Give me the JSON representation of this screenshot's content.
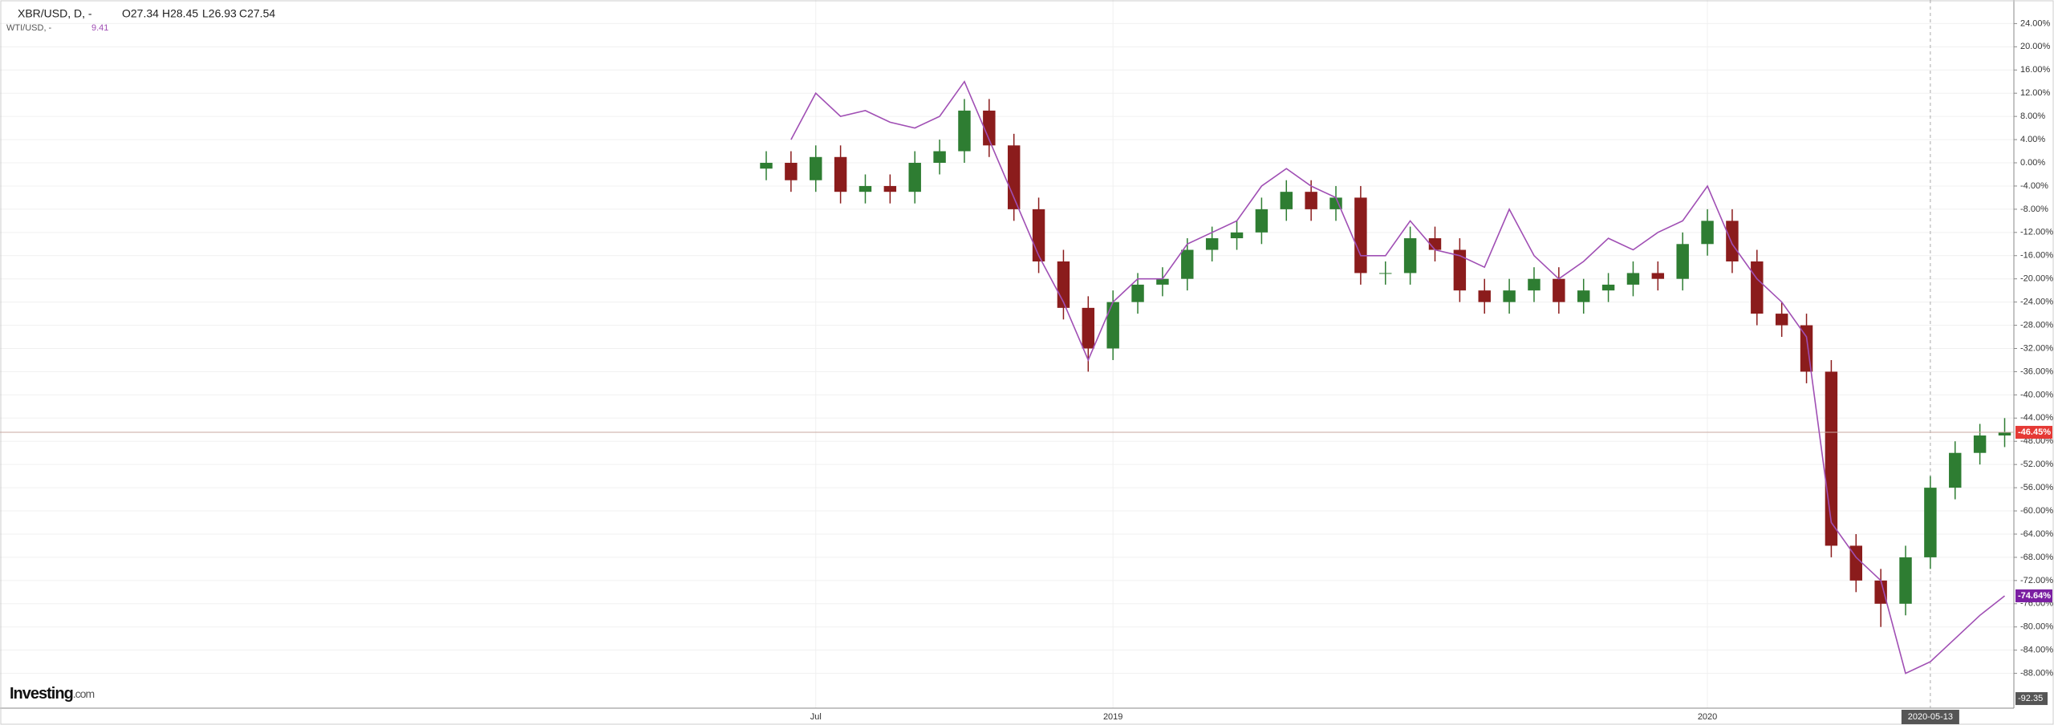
{
  "chart_data": {
    "type": "candlestick",
    "header": {
      "symbol": "XBR/USD, D, -",
      "open": "O27.34",
      "high": "H28.45",
      "low": "L26.93",
      "close": "C27.54",
      "symbol2": "WTI/USD, -",
      "value2": "9.41"
    },
    "watermark": {
      "brand": "Investing",
      "suffix": ".com"
    },
    "categories": [
      null,
      null,
      "Jul",
      null,
      null,
      null,
      null,
      null,
      null,
      null,
      null,
      null,
      null,
      null,
      "2019",
      null,
      null,
      null,
      null,
      null,
      null,
      null,
      null,
      null,
      null,
      null,
      null,
      null,
      null,
      null,
      null,
      null,
      null,
      null,
      null,
      null,
      null,
      null,
      "2020",
      null,
      null,
      null,
      null,
      null,
      null,
      null,
      null,
      null,
      null,
      null,
      null
    ],
    "crosshair": {
      "index": 47,
      "label": "2020-05-13"
    },
    "series": [
      {
        "name": "XBR/USD",
        "type": "candlestick",
        "up_color": "#2e7d32",
        "down_color": "#8b1c1c",
        "open": [
          -1,
          0,
          -3,
          1,
          -5,
          -4,
          -5,
          0,
          2,
          9,
          3,
          -8,
          -17,
          -25,
          -32,
          -24,
          -21,
          -20,
          -15,
          -13,
          -12,
          -8,
          -5,
          -8,
          -6,
          -19,
          -19,
          -13,
          -15,
          -22,
          -24,
          -22,
          -20,
          -24,
          -22,
          -21,
          -19,
          -20,
          -14,
          -10,
          -17,
          -26,
          -28,
          -36,
          -66,
          -72,
          -76,
          -68,
          -56,
          -50,
          -47
        ],
        "high": [
          2,
          2,
          3,
          3,
          -2,
          -2,
          2,
          4,
          11,
          11,
          5,
          -6,
          -15,
          -23,
          -22,
          -19,
          -18,
          -13,
          -11,
          -10,
          -6,
          -3,
          -3,
          -4,
          -4,
          -17,
          -11,
          -11,
          -13,
          -20,
          -20,
          -18,
          -18,
          -20,
          -19,
          -17,
          -17,
          -12,
          -8,
          -8,
          -15,
          -24,
          -26,
          -34,
          -64,
          -70,
          -66,
          -54,
          -48,
          -45,
          -44
        ],
        "low": [
          -3,
          -5,
          -5,
          -7,
          -7,
          -7,
          -7,
          -2,
          0,
          1,
          -10,
          -19,
          -27,
          -36,
          -34,
          -26,
          -23,
          -22,
          -17,
          -15,
          -14,
          -10,
          -10,
          -10,
          -21,
          -21,
          -21,
          -17,
          -24,
          -26,
          -26,
          -24,
          -26,
          -26,
          -24,
          -23,
          -22,
          -22,
          -16,
          -19,
          -28,
          -30,
          -38,
          -68,
          -74,
          -80,
          -78,
          -70,
          -58,
          -52,
          -49
        ],
        "close": [
          0,
          -3,
          1,
          -5,
          -4,
          -5,
          0,
          2,
          9,
          3,
          -8,
          -17,
          -25,
          -32,
          -24,
          -21,
          -20,
          -15,
          -13,
          -12,
          -8,
          -5,
          -8,
          -6,
          -19,
          -19,
          -13,
          -15,
          -22,
          -24,
          -22,
          -20,
          -24,
          -22,
          -21,
          -19,
          -20,
          -14,
          -10,
          -17,
          -26,
          -28,
          -36,
          -66,
          -72,
          -76,
          -68,
          -56,
          -50,
          -47,
          -46.45
        ],
        "last_label": "-46.45%",
        "last_color": "#e53935",
        "line_color": "#c9a8a0"
      },
      {
        "name": "WTI/USD",
        "type": "line",
        "color": "#a04fb4",
        "values": [
          null,
          4,
          12,
          8,
          9,
          7,
          6,
          8,
          14,
          4,
          -6,
          -16,
          -24,
          -34,
          -24,
          -20,
          -20,
          -14,
          -12,
          -10,
          -4,
          -1,
          -4,
          -6,
          -16,
          -16,
          -10,
          -15,
          -16,
          -18,
          -8,
          -16,
          -20,
          -17,
          -13,
          -15,
          -12,
          -10,
          -4,
          -14,
          -20,
          -24,
          -30,
          -62,
          -68,
          -72,
          -88,
          -86,
          -82,
          -78,
          -74.64
        ],
        "last_label": "-74.64%",
        "last_color": "#7b1fa2"
      }
    ],
    "scale_bottom_label": {
      "value": -92.35,
      "label": "-92.35"
    },
    "ylim": [
      -94,
      27
    ],
    "yticks": [
      {
        "value": 24,
        "label": "24.00%"
      },
      {
        "value": 20,
        "label": "20.00%"
      },
      {
        "value": 16,
        "label": "16.00%"
      },
      {
        "value": 12,
        "label": "12.00%"
      },
      {
        "value": 8,
        "label": "8.00%"
      },
      {
        "value": 4,
        "label": "4.00%"
      },
      {
        "value": 0,
        "label": "0.00%"
      },
      {
        "value": -4,
        "label": "-4.00%"
      },
      {
        "value": -8,
        "label": "-8.00%"
      },
      {
        "value": -12,
        "label": "-12.00%"
      },
      {
        "value": -16,
        "label": "-16.00%"
      },
      {
        "value": -20,
        "label": "-20.00%"
      },
      {
        "value": -24,
        "label": "-24.00%"
      },
      {
        "value": -28,
        "label": "-28.00%"
      },
      {
        "value": -32,
        "label": "-32.00%"
      },
      {
        "value": -36,
        "label": "-36.00%"
      },
      {
        "value": -40,
        "label": "-40.00%"
      },
      {
        "value": -44,
        "label": "-44.00%"
      },
      {
        "value": -48,
        "label": "-48.00%"
      },
      {
        "value": -52,
        "label": "-52.00%"
      },
      {
        "value": -56,
        "label": "-56.00%"
      },
      {
        "value": -60,
        "label": "-60.00%"
      },
      {
        "value": -64,
        "label": "-64.00%"
      },
      {
        "value": -68,
        "label": "-68.00%"
      },
      {
        "value": -72,
        "label": "-72.00%"
      },
      {
        "value": -76,
        "label": "-76.00%"
      },
      {
        "value": -80,
        "label": "-80.00%"
      },
      {
        "value": -84,
        "label": "-84.00%"
      },
      {
        "value": -88,
        "label": "-88.00%"
      }
    ],
    "grid": true
  }
}
